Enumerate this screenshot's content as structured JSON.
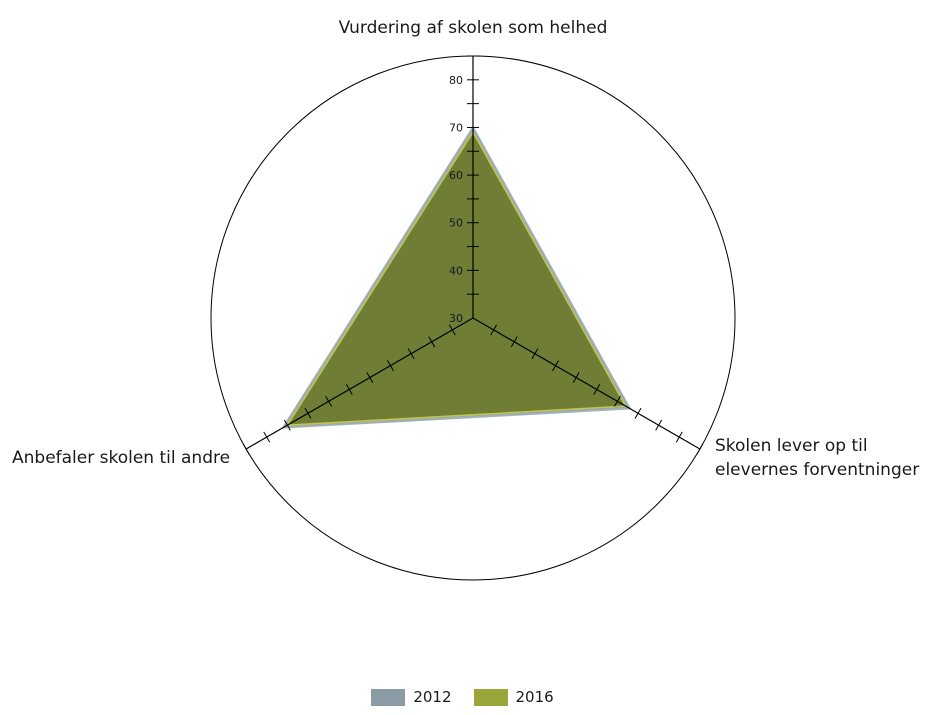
{
  "chart_data": {
    "type": "radar",
    "axes": [
      "Vurdering af skolen som helhed",
      "Skolen lever op til elevernes forventninger",
      "Anbefaler skolen til andre"
    ],
    "axis_label_lines": [
      [
        "Vurdering af skolen som helhed"
      ],
      [
        "Skolen lever op til",
        "elevernes forventninger"
      ],
      [
        "Anbefaler skolen til andre"
      ]
    ],
    "rlim": [
      30,
      85
    ],
    "r_ticks": [
      30,
      40,
      50,
      60,
      70,
      80
    ],
    "series": [
      {
        "name": "2012",
        "values": [
          70,
          68,
          76
        ]
      },
      {
        "name": "2016",
        "values": [
          69,
          67,
          75
        ]
      }
    ],
    "colors": {
      "2012": "#8a9ba3",
      "2016": "#7b8a2e",
      "fill": "#6b7a2a",
      "axis": "#000000"
    },
    "legend_position": "bottom"
  }
}
